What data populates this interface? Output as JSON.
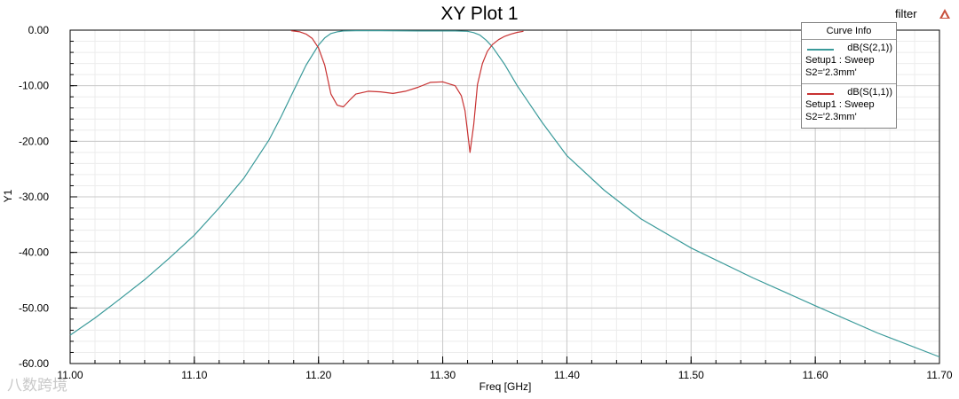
{
  "chart_data": {
    "type": "line",
    "title": "XY Plot 1",
    "xlabel": "Freq [GHz]",
    "ylabel": "Y1",
    "xlim": [
      11.0,
      11.7
    ],
    "ylim": [
      -60,
      0
    ],
    "xticks": [
      "11.00",
      "11.10",
      "11.20",
      "11.30",
      "11.40",
      "11.50",
      "11.60",
      "11.70"
    ],
    "yticks": [
      "0.00",
      "-10.00",
      "-20.00",
      "-30.00",
      "-40.00",
      "-50.00",
      "-60.00"
    ],
    "grid": true,
    "legend_position": "top-right",
    "series": [
      {
        "name": "dB(S(2,1))",
        "color": "#3a9a9a",
        "x": [
          11.0,
          11.02,
          11.04,
          11.06,
          11.08,
          11.1,
          11.12,
          11.14,
          11.16,
          11.17,
          11.18,
          11.19,
          11.2,
          11.205,
          11.21,
          11.215,
          11.22,
          11.23,
          11.25,
          11.28,
          11.31,
          11.32,
          11.325,
          11.33,
          11.335,
          11.34,
          11.35,
          11.36,
          11.38,
          11.4,
          11.43,
          11.46,
          11.5,
          11.55,
          11.6,
          11.65,
          11.7
        ],
        "y": [
          -54.9,
          -51.8,
          -48.4,
          -44.9,
          -41.0,
          -36.9,
          -32.0,
          -26.6,
          -19.8,
          -15.5,
          -10.9,
          -6.3,
          -2.7,
          -1.4,
          -0.6,
          -0.3,
          -0.15,
          -0.1,
          -0.1,
          -0.15,
          -0.15,
          -0.2,
          -0.45,
          -0.9,
          -1.8,
          -3.0,
          -6.2,
          -10.0,
          -16.6,
          -22.6,
          -28.8,
          -34.0,
          -39.2,
          -44.6,
          -49.6,
          -54.5,
          -58.8
        ]
      },
      {
        "name": "dB(S(1,1))",
        "color": "#c83232",
        "x": [
          11.178,
          11.185,
          11.19,
          11.195,
          11.2,
          11.205,
          11.21,
          11.215,
          11.22,
          11.225,
          11.23,
          11.24,
          11.25,
          11.26,
          11.27,
          11.28,
          11.29,
          11.3,
          11.31,
          11.315,
          11.318,
          11.322,
          11.325,
          11.328,
          11.332,
          11.336,
          11.34,
          11.345,
          11.35,
          11.355,
          11.36,
          11.365
        ],
        "y": [
          -0.1,
          -0.3,
          -0.7,
          -1.5,
          -3.2,
          -6.3,
          -11.5,
          -13.5,
          -13.8,
          -12.6,
          -11.5,
          -11.0,
          -11.1,
          -11.4,
          -11.0,
          -10.3,
          -9.4,
          -9.3,
          -10.0,
          -11.8,
          -14.5,
          -22.0,
          -17.0,
          -9.8,
          -6.0,
          -3.8,
          -2.6,
          -1.7,
          -1.1,
          -0.7,
          -0.4,
          -0.2
        ]
      }
    ],
    "curve_info": {
      "header": "Curve Info",
      "entries": [
        {
          "name": "dB(S(2,1))",
          "line2": "Setup1 : Sweep",
          "line3": "S2='2.3mm'",
          "color": "#3a9a9a"
        },
        {
          "name": "dB(S(1,1))",
          "line2": "Setup1 : Sweep",
          "line3": "S2='2.3mm'",
          "color": "#c83232"
        }
      ]
    }
  },
  "project_name": "filter",
  "watermark": "八数跨境"
}
